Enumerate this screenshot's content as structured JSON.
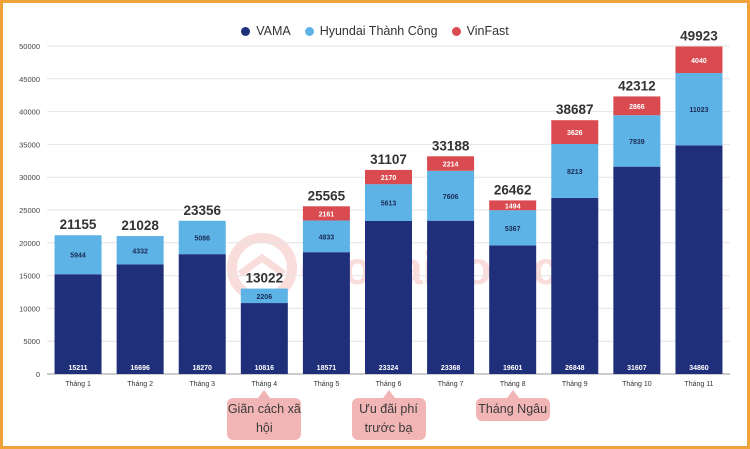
{
  "chart_data": {
    "type": "bar",
    "stacked": true,
    "categories": [
      "Tháng 1",
      "Tháng 2",
      "Tháng 3",
      "Tháng 4",
      "Tháng 5",
      "Tháng 6",
      "Tháng 7",
      "Tháng 8",
      "Tháng 9",
      "Tháng 10",
      "Tháng 11"
    ],
    "series": [
      {
        "name": "VAMA",
        "color": "#1f2f7a",
        "values": [
          15211,
          16696,
          18270,
          10816,
          18571,
          23324,
          23368,
          19601,
          26848,
          31607,
          34860
        ]
      },
      {
        "name": "Hyundai Thành Công",
        "color": "#5db3e6",
        "values": [
          5944,
          4332,
          5086,
          2206,
          4833,
          5613,
          7606,
          5367,
          8213,
          7839,
          11023
        ]
      },
      {
        "name": "VinFast",
        "color": "#d94b50",
        "values": [
          null,
          null,
          null,
          null,
          2161,
          2170,
          2214,
          1494,
          3626,
          2866,
          4040
        ]
      }
    ],
    "totals": [
      21155,
      21028,
      23356,
      13022,
      25565,
      31107,
      33188,
      26462,
      38687,
      42312,
      49923
    ],
    "yticks": [
      0,
      5000,
      10000,
      15000,
      20000,
      25000,
      30000,
      35000,
      40000,
      45000,
      50000
    ],
    "ylim": [
      0,
      50000
    ],
    "grid": true,
    "legend_position": "top-center"
  },
  "annotations": [
    {
      "text": "Giãn cách xã hội",
      "month_index": 3
    },
    {
      "text": "Ưu đãi phí trước bạ",
      "month_index": 5
    },
    {
      "text": "Tháng Ngâu",
      "month_index": 7
    }
  ],
  "watermark": {
    "text": "otosaigon.com",
    "color": "#e0463e"
  }
}
